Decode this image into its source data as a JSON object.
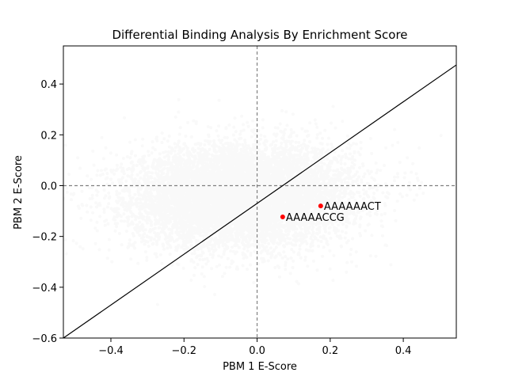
{
  "chart_data": {
    "type": "scatter",
    "title": "Differential Binding Analysis By Enrichment Score",
    "xlabel": "PBM 1 E-Score",
    "ylabel": "PBM 2 E-Score",
    "xlim": [
      -0.53,
      0.545
    ],
    "ylim": [
      -0.6,
      0.55
    ],
    "xticks": [
      -0.4,
      -0.2,
      0.0,
      0.2,
      0.4
    ],
    "yticks": [
      -0.6,
      -0.4,
      -0.2,
      0.0,
      0.2,
      0.4
    ],
    "xtick_labels": [
      "−0.4",
      "−0.2",
      "0.0",
      "0.2",
      "0.4"
    ],
    "ytick_labels": [
      "−0.6",
      "−0.4",
      "−0.2",
      "0.0",
      "0.2",
      "0.4"
    ],
    "grid": false,
    "background_cloud": {
      "description_color": "#808080",
      "center": [
        -0.04,
        -0.04
      ],
      "spread": [
        0.15,
        0.1
      ],
      "count": 9000,
      "opacity": 0.05
    },
    "reference_lines": [
      {
        "type": "horizontal",
        "y": 0.0,
        "style": "dashed",
        "color": "#808080"
      },
      {
        "type": "vertical",
        "x": 0.0,
        "style": "dashed",
        "color": "#808080"
      },
      {
        "type": "line",
        "points": [
          [
            -0.53,
            -0.6
          ],
          [
            0.545,
            0.475
          ]
        ],
        "style": "solid",
        "color": "#000000"
      }
    ],
    "highlighted_points": [
      {
        "x": 0.174,
        "y": -0.08,
        "label": "AAAAAACT",
        "color": "#ff0000"
      },
      {
        "x": 0.07,
        "y": -0.123,
        "label": "AAAAACCG",
        "color": "#ff0000"
      }
    ]
  }
}
